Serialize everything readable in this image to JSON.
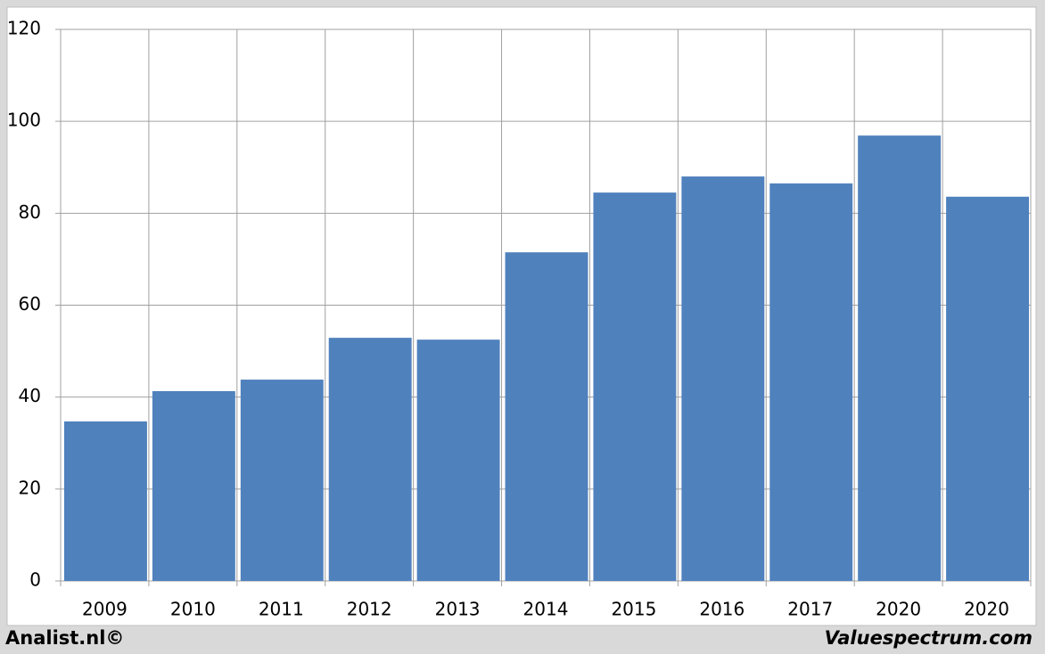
{
  "chart_data": {
    "type": "bar",
    "categories": [
      "2009",
      "2010",
      "2011",
      "2012",
      "2013",
      "2014",
      "2015",
      "2016",
      "2017",
      "2020",
      "2020"
    ],
    "values": [
      34.7,
      41.3,
      43.8,
      52.9,
      52.5,
      71.5,
      84.5,
      88.0,
      86.5,
      96.9,
      83.6
    ],
    "color": "#4f81bd",
    "ylim": [
      0,
      120
    ],
    "yticks": [
      0,
      20,
      40,
      60,
      80,
      100,
      120
    ],
    "grid": true,
    "footer_left": "Analist.nl©",
    "footer_right": "Valuespectrum.com"
  }
}
